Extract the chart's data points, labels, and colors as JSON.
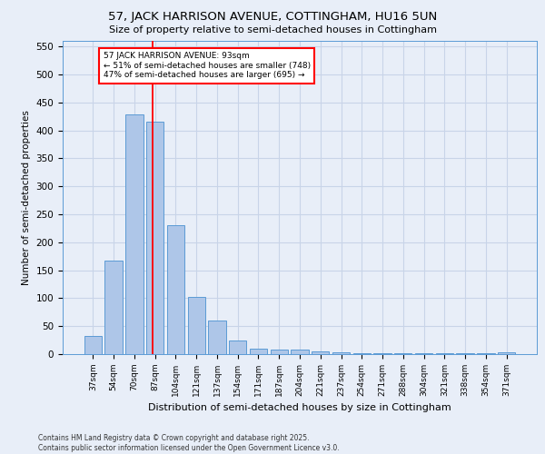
{
  "title": "57, JACK HARRISON AVENUE, COTTINGHAM, HU16 5UN",
  "subtitle": "Size of property relative to semi-detached houses in Cottingham",
  "xlabel": "Distribution of semi-detached houses by size in Cottingham",
  "ylabel": "Number of semi-detached properties",
  "categories": [
    "37sqm",
    "54sqm",
    "70sqm",
    "87sqm",
    "104sqm",
    "121sqm",
    "137sqm",
    "154sqm",
    "171sqm",
    "187sqm",
    "204sqm",
    "221sqm",
    "237sqm",
    "254sqm",
    "271sqm",
    "288sqm",
    "304sqm",
    "321sqm",
    "338sqm",
    "354sqm",
    "371sqm"
  ],
  "values": [
    33,
    168,
    428,
    415,
    230,
    103,
    60,
    25,
    10,
    8,
    8,
    5,
    4,
    2,
    1,
    1,
    1,
    1,
    1,
    1,
    4
  ],
  "bar_color": "#aec6e8",
  "bar_edge_color": "#5b9bd5",
  "grid_color": "#c8d4e8",
  "background_color": "#e8eef8",
  "vline_color": "red",
  "annotation_text_line1": "57 JACK HARRISON AVENUE: 93sqm",
  "annotation_text_line2": "← 51% of semi-detached houses are smaller (748)",
  "annotation_text_line3": "47% of semi-detached houses are larger (695) →",
  "ylim": [
    0,
    560
  ],
  "yticks": [
    0,
    50,
    100,
    150,
    200,
    250,
    300,
    350,
    400,
    450,
    500,
    550
  ],
  "footer_line1": "Contains HM Land Registry data © Crown copyright and database right 2025.",
  "footer_line2": "Contains public sector information licensed under the Open Government Licence v3.0."
}
